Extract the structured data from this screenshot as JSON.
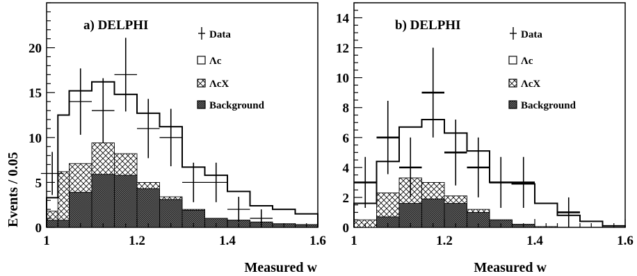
{
  "chart_data": [
    {
      "type": "bar",
      "title": "a)  DELPHI",
      "xlabel": "Measured w",
      "ylabel": "Events / 0.05",
      "xlim": [
        1.0,
        1.6
      ],
      "ylim": [
        0,
        25
      ],
      "xticks": [
        "1",
        "1.2",
        "1.4",
        "1.6"
      ],
      "yticks": [
        "0",
        "5",
        "10",
        "15",
        "20"
      ],
      "bin_edges": [
        1.0,
        1.025,
        1.05,
        1.1,
        1.15,
        1.2,
        1.25,
        1.3,
        1.35,
        1.4,
        1.45,
        1.5,
        1.55,
        1.6
      ],
      "legend_position": "top-right",
      "series": [
        {
          "name": "Data",
          "kind": "points",
          "x": [
            1.0125,
            1.075,
            1.125,
            1.175,
            1.225,
            1.275,
            1.325,
            1.375,
            1.425,
            1.475
          ],
          "y": [
            6,
            14,
            13,
            17,
            11,
            10,
            5,
            5,
            2,
            1
          ],
          "err": [
            2.4,
            3.7,
            3.6,
            4.1,
            3.3,
            3.2,
            2.2,
            2.2,
            1.4,
            1.0
          ]
        },
        {
          "name": "Λc",
          "kind": "step",
          "values": [
            3.3,
            12.5,
            15.2,
            16.2,
            14.8,
            12.7,
            11.2,
            6.7,
            5.8,
            4.0,
            2.4,
            2.0,
            1.5
          ]
        },
        {
          "name": "ΛcX",
          "kind": "fill-cross",
          "values": [
            1.8,
            6.2,
            7.1,
            9.4,
            8.2,
            5.0,
            3.4,
            2.0,
            1.0,
            0.8,
            0.5,
            0.4,
            0.3
          ]
        },
        {
          "name": "Background",
          "kind": "fill-dense",
          "values": [
            0.8,
            0.8,
            3.9,
            5.9,
            5.8,
            4.3,
            3.1,
            1.9,
            1.0,
            0.8,
            0.6,
            0.4,
            0.3
          ]
        }
      ]
    },
    {
      "type": "bar",
      "title": "b)  DELPHI",
      "xlabel": "Measured w",
      "ylabel": "",
      "xlim": [
        1.0,
        1.6
      ],
      "ylim": [
        0,
        15
      ],
      "xticks": [
        "1",
        "1.2",
        "1.4",
        "1.6"
      ],
      "yticks": [
        "0",
        "2",
        "4",
        "6",
        "8",
        "10",
        "12",
        "14"
      ],
      "bin_edges": [
        1.0,
        1.05,
        1.1,
        1.15,
        1.2,
        1.25,
        1.3,
        1.35,
        1.4,
        1.45,
        1.5,
        1.55,
        1.6
      ],
      "legend_position": "top-right",
      "series": [
        {
          "name": "Data",
          "kind": "points",
          "x": [
            1.025,
            1.075,
            1.125,
            1.175,
            1.225,
            1.275,
            1.325,
            1.375,
            1.475
          ],
          "y": [
            3,
            6,
            4,
            9,
            5,
            4,
            3,
            3,
            1
          ],
          "err": [
            1.7,
            2.45,
            2.0,
            3.0,
            2.2,
            2.0,
            1.7,
            1.7,
            1.0
          ]
        },
        {
          "name": "Λc",
          "kind": "step",
          "values": [
            1.6,
            4.4,
            6.7,
            7.2,
            6.3,
            5.1,
            3.0,
            2.9,
            1.6,
            0.8,
            0.4,
            0.1
          ]
        },
        {
          "name": "ΛcX",
          "kind": "fill-cross",
          "values": [
            0.5,
            2.3,
            3.3,
            3.0,
            2.1,
            1.2,
            0.5,
            0.2,
            0.05,
            0.0,
            0.0,
            0.0
          ]
        },
        {
          "name": "Background",
          "kind": "fill-dense",
          "values": [
            0.0,
            0.7,
            1.6,
            1.9,
            1.6,
            1.0,
            0.5,
            0.2,
            0.0,
            0.0,
            0.0,
            0.0
          ]
        }
      ]
    }
  ]
}
